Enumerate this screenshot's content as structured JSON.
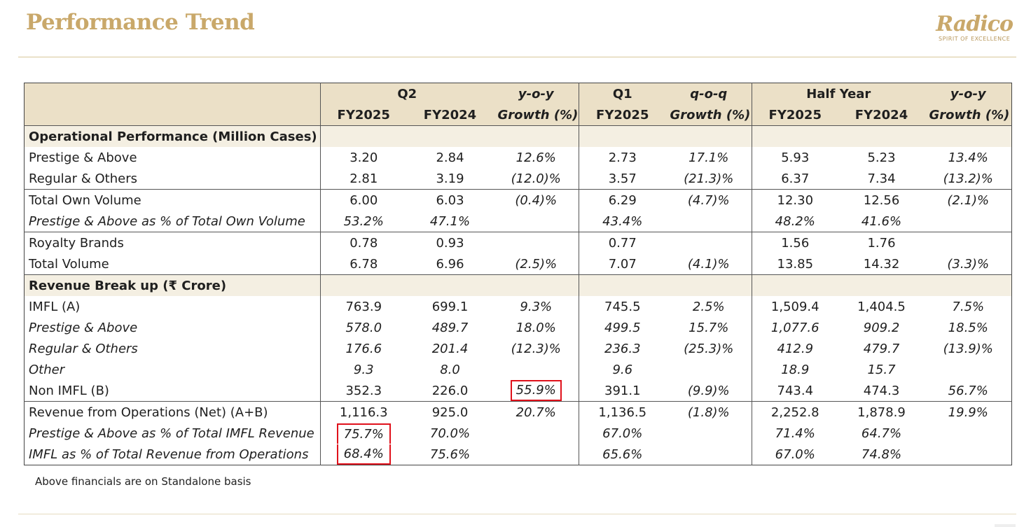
{
  "header": {
    "title": "Performance Trend",
    "logo_name": "Radico",
    "logo_tagline": "SPIRIT OF EXCELLENCE"
  },
  "table": {
    "group_headers": {
      "q2": "Q2",
      "yoy": "y-o-y",
      "q1": "Q1",
      "qoq": "q-o-q",
      "half_year": "Half Year",
      "yoy2": "y-o-y"
    },
    "sub_headers": [
      "FY2025",
      "FY2024",
      "Growth (%)",
      "FY2025",
      "Growth (%)",
      "FY2025",
      "FY2024",
      "Growth (%)"
    ],
    "sections": [
      {
        "title": "Operational Performance (Million Cases)"
      },
      {
        "title": "Revenue Break up (₹ Crore)"
      }
    ],
    "rows": [
      {
        "label": "Prestige & Above",
        "values": [
          "3.20",
          "2.84",
          "12.6%",
          "2.73",
          "17.1%",
          "5.93",
          "5.23",
          "13.4%"
        ]
      },
      {
        "label": "Regular & Others",
        "values": [
          "2.81",
          "3.19",
          "(12.0)%",
          "3.57",
          "(21.3)%",
          "6.37",
          "7.34",
          "(13.2)%"
        ]
      },
      {
        "label": "Total Own Volume",
        "values": [
          "6.00",
          "6.03",
          "(0.4)%",
          "6.29",
          "(4.7)%",
          "12.30",
          "12.56",
          "(2.1)%"
        ]
      },
      {
        "label": "Prestige & Above as % of Total Own Volume",
        "values": [
          "53.2%",
          "47.1%",
          "",
          "43.4%",
          "",
          "48.2%",
          "41.6%",
          ""
        ]
      },
      {
        "label": "Royalty Brands",
        "values": [
          "0.78",
          "0.93",
          "",
          "0.77",
          "",
          "1.56",
          "1.76",
          ""
        ]
      },
      {
        "label": "Total Volume",
        "values": [
          "6.78",
          "6.96",
          "(2.5)%",
          "7.07",
          "(4.1)%",
          "13.85",
          "14.32",
          "(3.3)%"
        ]
      },
      {
        "label": "IMFL (A)",
        "values": [
          "763.9",
          "699.1",
          "9.3%",
          "745.5",
          "2.5%",
          "1,509.4",
          "1,404.5",
          "7.5%"
        ]
      },
      {
        "label": "Prestige & Above",
        "values": [
          "578.0",
          "489.7",
          "18.0%",
          "499.5",
          "15.7%",
          "1,077.6",
          "909.2",
          "18.5%"
        ]
      },
      {
        "label": "Regular & Others",
        "values": [
          "176.6",
          "201.4",
          "(12.3)%",
          "236.3",
          "(25.3)%",
          "412.9",
          "479.7",
          "(13.9)%"
        ]
      },
      {
        "label": "Other",
        "values": [
          "9.3",
          "8.0",
          "",
          "9.6",
          "",
          "18.9",
          "15.7",
          ""
        ]
      },
      {
        "label": "Non IMFL (B)",
        "values": [
          "352.3",
          "226.0",
          "55.9%",
          "391.1",
          "(9.9)%",
          "743.4",
          "474.3",
          "56.7%"
        ]
      },
      {
        "label": "Revenue from Operations (Net) (A+B)",
        "values": [
          "1,116.3",
          "925.0",
          "20.7%",
          "1,136.5",
          "(1.8)%",
          "2,252.8",
          "1,878.9",
          "19.9%"
        ]
      },
      {
        "label": "Prestige & Above as % of Total IMFL Revenue",
        "values": [
          "75.7%",
          "70.0%",
          "",
          "67.0%",
          "",
          "71.4%",
          "64.7%",
          ""
        ]
      },
      {
        "label": "IMFL as % of Total Revenue from Operations",
        "values": [
          "68.4%",
          "75.6%",
          "",
          "65.6%",
          "",
          "67.0%",
          "74.8%",
          ""
        ]
      }
    ]
  },
  "footnote": "Above financials are on Standalone basis",
  "colors": {
    "title_gold": "#c9a86a",
    "header_fill": "#ebe0c7",
    "highlight_red": "#e0111b"
  }
}
